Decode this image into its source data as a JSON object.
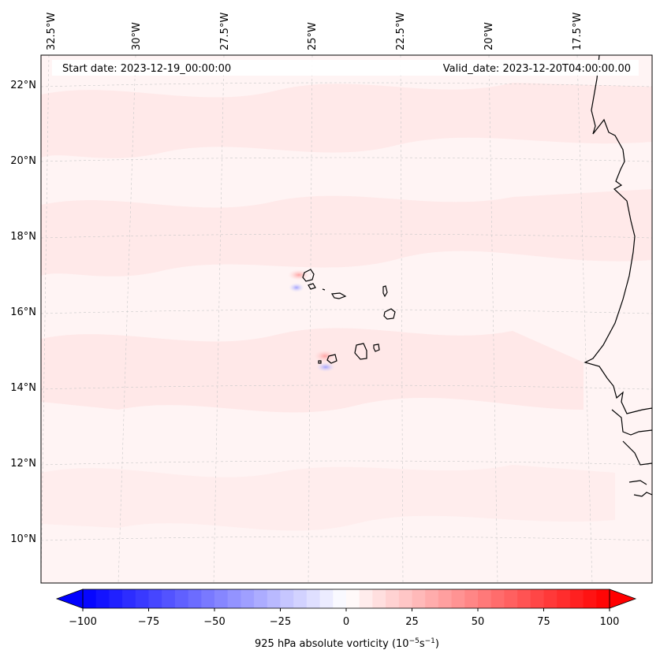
{
  "header": {
    "start_date": "Start date: 2023-12-19_00:00:00",
    "valid_date": "Valid_date: 2023-12-20T04:00:00.00"
  },
  "map": {
    "lon_labels": [
      "32.5°W",
      "30°W",
      "27.5°W",
      "25°W",
      "22.5°W",
      "20°W",
      "17.5°W"
    ],
    "lat_labels": [
      "22°N",
      "20°N",
      "18°N",
      "16°N",
      "14°N",
      "12°N",
      "10°N"
    ],
    "background_color": "#fff3f3",
    "coastline_color": "#000000",
    "gridline_color": "#cccccc"
  },
  "colorbar": {
    "label": "925 hPa absolute vorticity (10",
    "label_exp1": "−5",
    "label_mid": "s",
    "label_exp2": "−1",
    "label_end": ")",
    "ticks": [
      "−100",
      "−75",
      "−50",
      "−25",
      "0",
      "25",
      "50",
      "75",
      "100"
    ],
    "min_color": "#0000ff",
    "mid_color": "#ffffff",
    "max_color": "#ff0000"
  }
}
